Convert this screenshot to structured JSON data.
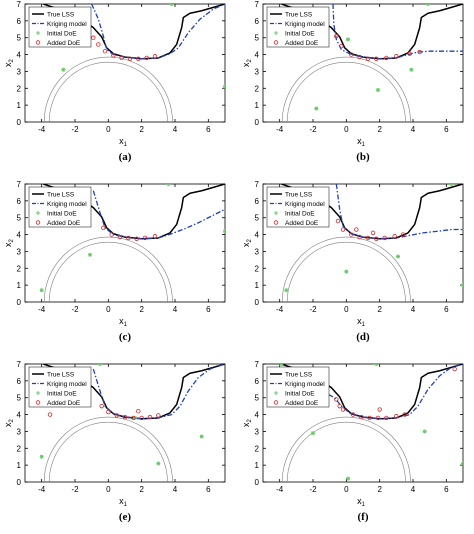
{
  "figure": {
    "panels": [
      {
        "caption": "(a)",
        "legend": [
          "True LSS",
          "Kriging model",
          "Initial DoE",
          "Added DoE"
        ]
      },
      {
        "caption": "(b)",
        "legend": [
          "True LSS",
          "Kriging model",
          "Initial DoE",
          "Added DoE"
        ]
      },
      {
        "caption": "(c)",
        "legend": [
          "True LSS",
          "Kriging model",
          "Initial DoE",
          "Added DoE"
        ]
      },
      {
        "caption": "(d)",
        "legend": [
          "True LSS",
          "Kriging model",
          "Initial DoE",
          "Added DoE"
        ]
      },
      {
        "caption": "(e)",
        "legend": [
          "True LSS",
          "Kriging model",
          "Initial DoE",
          "Added DoE"
        ]
      },
      {
        "caption": "(f)",
        "legend": [
          "True LSS",
          "Kriging model",
          "Initial DoE",
          "Added DoE"
        ]
      }
    ]
  },
  "colors": {
    "true_lss": "#000000",
    "kriging": "#1f3fbf",
    "initial_doe": "#66cc66",
    "added_doe": "#d62728",
    "circle": "#7f7f7f"
  },
  "chart_data": [
    {
      "type": "line",
      "panel": "(a)",
      "xlabel": "x1",
      "ylabel": "x2",
      "xlim": [
        -5,
        7
      ],
      "ylim": [
        0,
        7
      ],
      "xticks": [
        -4,
        -2,
        0,
        2,
        4,
        6
      ],
      "yticks": [
        0,
        1,
        2,
        3,
        4,
        5,
        6,
        7
      ],
      "series": [
        {
          "name": "True LSS",
          "x": [
            -3.9,
            -3.0,
            -2.2,
            -1.5,
            -0.9,
            -0.4,
            -0.1,
            0.3,
            1.0,
            2.0,
            3.0,
            3.7,
            4.1,
            4.4,
            4.5,
            4.9,
            5.6,
            6.3,
            7.0
          ],
          "y": [
            7.0,
            6.7,
            6.35,
            6.0,
            5.6,
            5.05,
            4.4,
            4.05,
            3.85,
            3.75,
            3.8,
            4.1,
            4.6,
            5.6,
            6.2,
            6.45,
            6.6,
            6.8,
            7.0
          ]
        },
        {
          "name": "Kriging model",
          "x": [
            -1.0,
            -0.6,
            -0.3,
            -0.1,
            0.3,
            1.0,
            2.0,
            3.0,
            3.7,
            4.2,
            4.8,
            5.5,
            6.3,
            7.0
          ],
          "y": [
            7.0,
            6.1,
            5.1,
            4.3,
            4.0,
            3.85,
            3.75,
            3.8,
            4.05,
            4.4,
            5.3,
            6.1,
            6.7,
            7.0
          ]
        },
        {
          "name": "Initial DoE",
          "x": [
            -2.7,
            3.8,
            7.0
          ],
          "y": [
            3.1,
            7.0,
            2.1
          ]
        },
        {
          "name": "Added DoE",
          "x": [
            -0.6,
            -0.2,
            0.3,
            0.8,
            1.3,
            1.8,
            2.3,
            2.8,
            -0.9
          ],
          "y": [
            4.6,
            4.2,
            3.95,
            3.8,
            3.75,
            3.75,
            3.8,
            3.9,
            5.0
          ]
        }
      ]
    },
    {
      "type": "line",
      "panel": "(b)",
      "xlabel": "x1",
      "ylabel": "x2",
      "xlim": [
        -5,
        7
      ],
      "ylim": [
        0,
        7
      ],
      "xticks": [
        -4,
        -2,
        0,
        2,
        4,
        6
      ],
      "yticks": [
        0,
        1,
        2,
        3,
        4,
        5,
        6,
        7
      ],
      "series": [
        {
          "name": "True LSS",
          "x": [
            -3.9,
            -3.0,
            -2.2,
            -1.5,
            -0.9,
            -0.4,
            -0.1,
            0.3,
            1.0,
            2.0,
            3.0,
            3.7,
            4.1,
            4.4,
            4.5,
            4.9,
            5.6,
            6.3,
            7.0
          ],
          "y": [
            7.0,
            6.7,
            6.35,
            6.0,
            5.6,
            5.05,
            4.4,
            4.05,
            3.85,
            3.75,
            3.8,
            4.1,
            4.6,
            5.6,
            6.2,
            6.45,
            6.6,
            6.8,
            7.0
          ]
        },
        {
          "name": "Kriging model",
          "x": [
            -0.8,
            -0.75,
            -0.6,
            -0.3,
            0.3,
            1.0,
            2.0,
            3.0,
            3.7,
            4.3,
            5.0,
            6.0,
            7.0
          ],
          "y": [
            7.0,
            5.8,
            4.9,
            4.3,
            4.0,
            3.85,
            3.75,
            3.8,
            4.0,
            4.15,
            4.2,
            4.2,
            4.2
          ]
        },
        {
          "name": "Initial DoE",
          "x": [
            -1.8,
            1.9,
            3.9,
            4.9,
            0.1
          ],
          "y": [
            0.8,
            1.9,
            3.1,
            7.0,
            4.9
          ]
        },
        {
          "name": "Added DoE",
          "x": [
            -0.6,
            -0.3,
            0.3,
            0.8,
            1.3,
            1.8,
            2.4,
            3.0,
            3.8,
            4.4
          ],
          "y": [
            5.1,
            4.5,
            4.0,
            3.85,
            3.75,
            3.75,
            3.8,
            3.9,
            4.05,
            4.15
          ]
        }
      ]
    },
    {
      "type": "line",
      "panel": "(c)",
      "xlabel": "x1",
      "ylabel": "x2",
      "xlim": [
        -5,
        7
      ],
      "ylim": [
        0,
        7
      ],
      "xticks": [
        -4,
        -2,
        0,
        2,
        4,
        6
      ],
      "yticks": [
        0,
        1,
        2,
        3,
        4,
        5,
        6,
        7
      ],
      "series": [
        {
          "name": "True LSS",
          "x": [
            -3.9,
            -3.0,
            -2.2,
            -1.5,
            -0.9,
            -0.4,
            -0.1,
            0.3,
            1.0,
            2.0,
            3.0,
            3.7,
            4.1,
            4.4,
            4.5,
            4.9,
            5.6,
            6.3,
            7.0
          ],
          "y": [
            7.0,
            6.7,
            6.35,
            6.0,
            5.6,
            5.05,
            4.4,
            4.05,
            3.85,
            3.75,
            3.8,
            4.1,
            4.6,
            5.6,
            6.2,
            6.45,
            6.6,
            6.8,
            7.0
          ]
        },
        {
          "name": "Kriging model",
          "x": [
            -0.9,
            -0.5,
            -0.2,
            0.3,
            1.0,
            2.0,
            3.0,
            3.8,
            4.6,
            5.4,
            6.2,
            7.0
          ],
          "y": [
            6.6,
            5.3,
            4.4,
            4.0,
            3.85,
            3.75,
            3.8,
            4.05,
            4.35,
            4.7,
            5.1,
            5.5
          ]
        },
        {
          "name": "Initial DoE",
          "x": [
            -4.0,
            -1.1,
            3.6,
            7.0
          ],
          "y": [
            0.7,
            2.8,
            7.0,
            4.2
          ]
        },
        {
          "name": "Added DoE",
          "x": [
            -0.3,
            0.2,
            0.7,
            1.2,
            1.7,
            2.2,
            2.8
          ],
          "y": [
            4.4,
            4.0,
            3.85,
            3.8,
            3.75,
            3.8,
            3.9
          ]
        }
      ]
    },
    {
      "type": "line",
      "panel": "(d)",
      "xlabel": "x1",
      "ylabel": "x2",
      "xlim": [
        -5,
        7
      ],
      "ylim": [
        0,
        7
      ],
      "xticks": [
        -4,
        -2,
        0,
        2,
        4,
        6
      ],
      "yticks": [
        0,
        1,
        2,
        3,
        4,
        5,
        6,
        7
      ],
      "series": [
        {
          "name": "True LSS",
          "x": [
            -3.9,
            -3.0,
            -2.2,
            -1.5,
            -0.9,
            -0.4,
            -0.1,
            0.3,
            1.0,
            2.0,
            3.0,
            3.7,
            4.1,
            4.4,
            4.5,
            4.9,
            5.6,
            6.3,
            7.0
          ],
          "y": [
            7.0,
            6.7,
            6.35,
            6.0,
            5.6,
            5.05,
            4.4,
            4.05,
            3.85,
            3.75,
            3.8,
            4.1,
            4.6,
            5.6,
            6.2,
            6.45,
            6.6,
            6.8,
            7.0
          ]
        },
        {
          "name": "Kriging model",
          "x": [
            -0.6,
            -0.4,
            -0.2,
            0.3,
            1.0,
            2.0,
            3.0,
            3.8,
            4.6,
            5.5,
            6.3,
            7.0
          ],
          "y": [
            7.0,
            5.5,
            4.5,
            4.05,
            3.85,
            3.75,
            3.8,
            3.95,
            4.1,
            4.2,
            4.3,
            4.3
          ]
        },
        {
          "name": "Initial DoE",
          "x": [
            -3.6,
            0.0,
            3.1,
            6.3,
            7.0
          ],
          "y": [
            0.7,
            1.8,
            2.7,
            7.0,
            1.0
          ]
        },
        {
          "name": "Added DoE",
          "x": [
            -0.5,
            -0.2,
            0.3,
            0.8,
            1.3,
            1.8,
            2.3,
            2.9,
            3.4,
            0.6,
            1.6
          ],
          "y": [
            4.8,
            4.3,
            4.0,
            3.85,
            3.8,
            3.75,
            3.8,
            3.9,
            4.0,
            4.3,
            4.1
          ]
        }
      ]
    },
    {
      "type": "line",
      "panel": "(e)",
      "xlabel": "x1",
      "ylabel": "x2",
      "xlim": [
        -5,
        7
      ],
      "ylim": [
        0,
        7
      ],
      "xticks": [
        -4,
        -2,
        0,
        2,
        4,
        6
      ],
      "yticks": [
        0,
        1,
        2,
        3,
        4,
        5,
        6,
        7
      ],
      "series": [
        {
          "name": "True LSS",
          "x": [
            -3.9,
            -3.0,
            -2.2,
            -1.5,
            -0.9,
            -0.4,
            -0.1,
            0.3,
            1.0,
            2.0,
            3.0,
            3.7,
            4.1,
            4.4,
            4.5,
            4.9,
            5.6,
            6.3,
            7.0
          ],
          "y": [
            7.0,
            6.7,
            6.35,
            6.0,
            5.6,
            5.05,
            4.4,
            4.05,
            3.85,
            3.75,
            3.8,
            4.1,
            4.6,
            5.6,
            6.2,
            6.45,
            6.6,
            6.8,
            7.0
          ]
        },
        {
          "name": "Kriging model",
          "x": [
            -0.9,
            -0.5,
            -0.2,
            0.3,
            1.0,
            2.0,
            3.0,
            3.8,
            4.3,
            4.8,
            5.4,
            6.1,
            7.0
          ],
          "y": [
            6.7,
            5.4,
            4.5,
            4.05,
            3.85,
            3.75,
            3.8,
            4.0,
            4.5,
            5.4,
            6.2,
            6.7,
            7.0
          ]
        },
        {
          "name": "Initial DoE",
          "x": [
            -4.0,
            -0.5,
            1.6,
            3.0,
            5.6
          ],
          "y": [
            1.5,
            7.0,
            3.8,
            1.1,
            2.7
          ]
        },
        {
          "name": "Added DoE",
          "x": [
            -0.4,
            0.0,
            0.5,
            1.0,
            1.5,
            2.0,
            2.5,
            3.0,
            -3.5,
            1.8
          ],
          "y": [
            4.5,
            4.15,
            3.95,
            3.85,
            3.8,
            3.8,
            3.85,
            3.95,
            4.0,
            4.2
          ]
        }
      ]
    },
    {
      "type": "line",
      "panel": "(f)",
      "xlabel": "x1",
      "ylabel": "x2",
      "xlim": [
        -5,
        7
      ],
      "ylim": [
        0,
        7
      ],
      "xticks": [
        -4,
        -2,
        0,
        2,
        4,
        6
      ],
      "yticks": [
        0,
        1,
        2,
        3,
        4,
        5,
        6,
        7
      ],
      "series": [
        {
          "name": "True LSS",
          "x": [
            -3.9,
            -3.0,
            -2.2,
            -1.5,
            -0.9,
            -0.4,
            -0.1,
            0.3,
            1.0,
            2.0,
            3.0,
            3.7,
            4.1,
            4.4,
            4.5,
            4.9,
            5.6,
            6.3,
            7.0
          ],
          "y": [
            7.0,
            6.7,
            6.35,
            6.0,
            5.6,
            5.05,
            4.4,
            4.05,
            3.85,
            3.75,
            3.8,
            4.1,
            4.6,
            5.6,
            6.2,
            6.45,
            6.6,
            6.8,
            7.0
          ]
        },
        {
          "name": "Kriging model",
          "x": [
            -2.9,
            -2.0,
            -1.3,
            -0.7,
            -0.3,
            0.2,
            1.0,
            2.0,
            3.0,
            3.8,
            4.3,
            4.9,
            5.6,
            6.3,
            7.0
          ],
          "y": [
            5.6,
            5.5,
            5.3,
            5.0,
            4.5,
            4.1,
            3.85,
            3.75,
            3.8,
            4.0,
            4.5,
            5.5,
            6.3,
            6.8,
            7.0
          ]
        },
        {
          "name": "Initial DoE",
          "x": [
            -2.0,
            0.1,
            1.8,
            4.7,
            7.0,
            -3.9
          ],
          "y": [
            2.9,
            0.2,
            7.0,
            3.0,
            1.1,
            7.0
          ]
        },
        {
          "name": "Added DoE",
          "x": [
            -0.6,
            -0.2,
            0.4,
            0.9,
            1.4,
            1.9,
            2.4,
            3.0,
            3.5,
            -0.4,
            2.0,
            6.5
          ],
          "y": [
            4.9,
            4.3,
            4.0,
            3.85,
            3.8,
            3.8,
            3.8,
            3.9,
            4.0,
            4.5,
            4.3,
            6.7
          ]
        }
      ]
    }
  ]
}
